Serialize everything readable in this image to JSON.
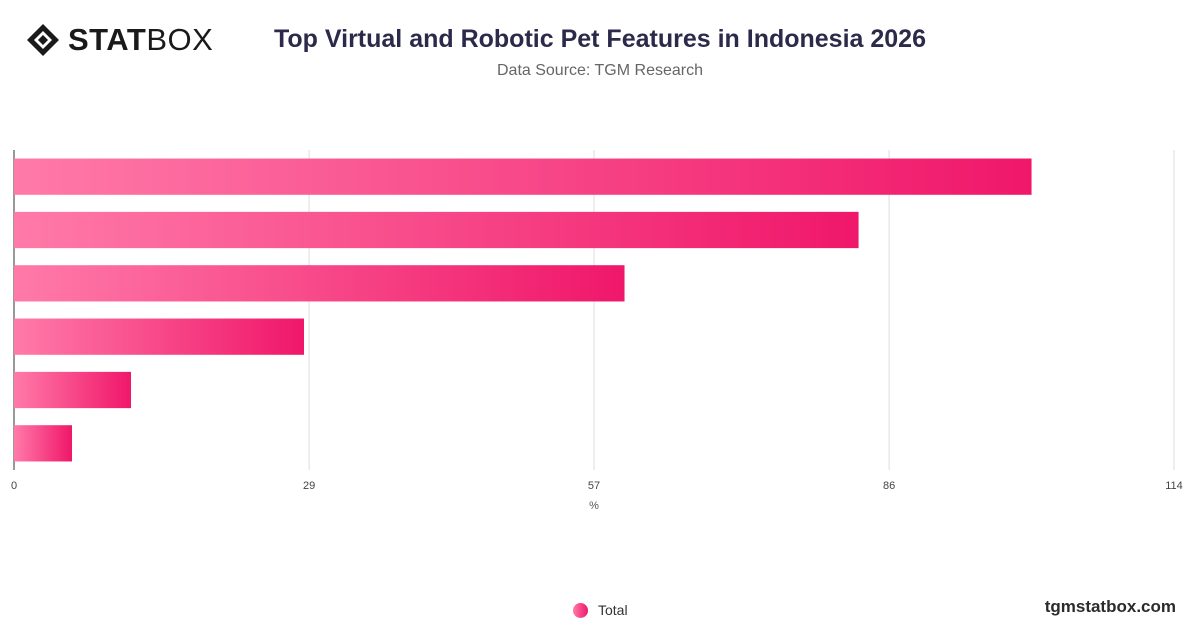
{
  "brand": {
    "logo_stat": "STAT",
    "logo_box": "BOX",
    "site": "tgmstatbox.com"
  },
  "header": {
    "title": "Top Virtual and Robotic Pet Features in Indonesia 2026",
    "subtitle": "Data Source: TGM Research"
  },
  "colors": {
    "bar_start": "#ff7aa8",
    "bar_end": "#f0176a",
    "grid": "#dddddd"
  },
  "chart_data": {
    "type": "bar",
    "orientation": "horizontal",
    "title": "Top Virtual and Robotic Pet Features in Indonesia 2026",
    "subtitle": "Data Source: TGM Research",
    "xlabel": "%",
    "xlim": [
      0,
      114
    ],
    "xticks": [
      0,
      29,
      57,
      86,
      114
    ],
    "grid": true,
    "legend": "bottom-center",
    "series": [
      {
        "name": "Total",
        "values": [
          100,
          83,
          60,
          28.5,
          11.5,
          5.7
        ]
      }
    ]
  },
  "legend": {
    "label": "Total"
  }
}
